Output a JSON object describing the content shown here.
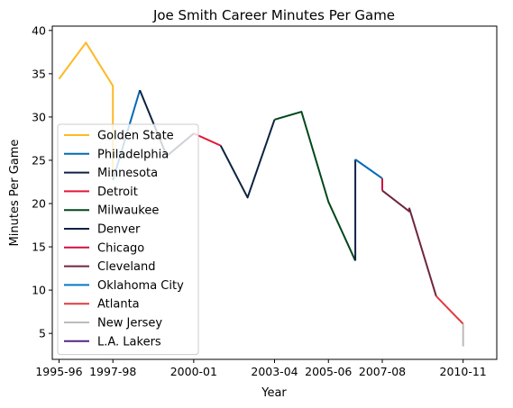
{
  "chart_data": {
    "type": "line",
    "title": "Joe Smith  Career Minutes Per Game",
    "xlabel": "Year",
    "ylabel": "Minutes Per Game",
    "xlim": [
      1994.75,
      2011.25
    ],
    "ylim": [
      2.0,
      40.5
    ],
    "x_ticks": [
      {
        "x": 1995,
        "label": "1995-96"
      },
      {
        "x": 1997,
        "label": "1997-98"
      },
      {
        "x": 2000,
        "label": "2000-01"
      },
      {
        "x": 2003,
        "label": "2003-04"
      },
      {
        "x": 2005,
        "label": "2005-06"
      },
      {
        "x": 2007,
        "label": "2007-08"
      },
      {
        "x": 2010,
        "label": "2010-11"
      }
    ],
    "y_ticks": [
      5,
      10,
      15,
      20,
      25,
      30,
      35,
      40
    ],
    "legend_position": "lower-left",
    "series": [
      {
        "name": "Golden State",
        "color": "#FDB927",
        "points": [
          [
            1995,
            34.4
          ],
          [
            1996,
            38.6
          ],
          [
            1997,
            33.6
          ],
          [
            1997,
            22.7
          ]
        ]
      },
      {
        "name": "Philadelphia",
        "color": "#006BB6",
        "points": [
          [
            1997,
            22.7
          ],
          [
            1998,
            33.1
          ]
        ]
      },
      {
        "name": "Minnesota",
        "color": "#0C2340",
        "points": [
          [
            1998,
            33.1
          ],
          [
            1999,
            25.5
          ],
          [
            2000,
            28.1
          ]
        ]
      },
      {
        "name": "Detroit",
        "color": "#E31837",
        "points": [
          [
            2000,
            28.1
          ],
          [
            2001,
            26.7
          ]
        ]
      },
      {
        "name": "Minnesota",
        "color": "#0C2340",
        "points": [
          [
            2001,
            26.7
          ],
          [
            2002,
            20.7
          ],
          [
            2003,
            29.7
          ]
        ]
      },
      {
        "name": "Milwaukee",
        "color": "#00471B",
        "points": [
          [
            2003,
            29.7
          ],
          [
            2004,
            30.6
          ],
          [
            2005,
            20.2
          ],
          [
            2006,
            13.4
          ]
        ]
      },
      {
        "name": "Denver",
        "color": "#0E2240",
        "points": [
          [
            2006,
            13.4
          ],
          [
            2006,
            25.1
          ]
        ]
      },
      {
        "name": "Philadelphia",
        "color": "#006BB6",
        "points": [
          [
            2006,
            25.1
          ],
          [
            2007,
            22.9
          ]
        ]
      },
      {
        "name": "Chicago",
        "color": "#CE1141",
        "points": [
          [
            2007,
            22.9
          ],
          [
            2007,
            21.5
          ]
        ]
      },
      {
        "name": "Cleveland",
        "color": "#6F263D",
        "points": [
          [
            2007,
            21.5
          ],
          [
            2008,
            19.1
          ],
          [
            2008,
            19.5
          ]
        ]
      },
      {
        "name": "Cleveland",
        "color": "#6F263D",
        "points": [
          [
            2008,
            19.5
          ],
          [
            2009,
            9.3
          ]
        ]
      },
      {
        "name": "Atlanta",
        "color": "#E03A3E",
        "points": [
          [
            2009,
            9.3
          ],
          [
            2010,
            6.1
          ]
        ]
      },
      {
        "name": "New Jersey",
        "color": "#BBBBBB",
        "points": [
          [
            2010,
            6.1
          ],
          [
            2010,
            3.5
          ]
        ]
      }
    ],
    "legend": [
      {
        "label": "Golden State",
        "color": "#FDB927"
      },
      {
        "label": "Philadelphia",
        "color": "#006BB6"
      },
      {
        "label": "Minnesota",
        "color": "#0C2340"
      },
      {
        "label": "Detroit",
        "color": "#E31837"
      },
      {
        "label": "Milwaukee",
        "color": "#00471B"
      },
      {
        "label": "Denver",
        "color": "#0E2240"
      },
      {
        "label": "Chicago",
        "color": "#CE1141"
      },
      {
        "label": "Cleveland",
        "color": "#6F263D"
      },
      {
        "label": "Oklahoma City",
        "color": "#007AC1"
      },
      {
        "label": "Atlanta",
        "color": "#E03A3E"
      },
      {
        "label": "New Jersey",
        "color": "#BBBBBB"
      },
      {
        "label": "L.A. Lakers",
        "color": "#552583"
      }
    ]
  }
}
